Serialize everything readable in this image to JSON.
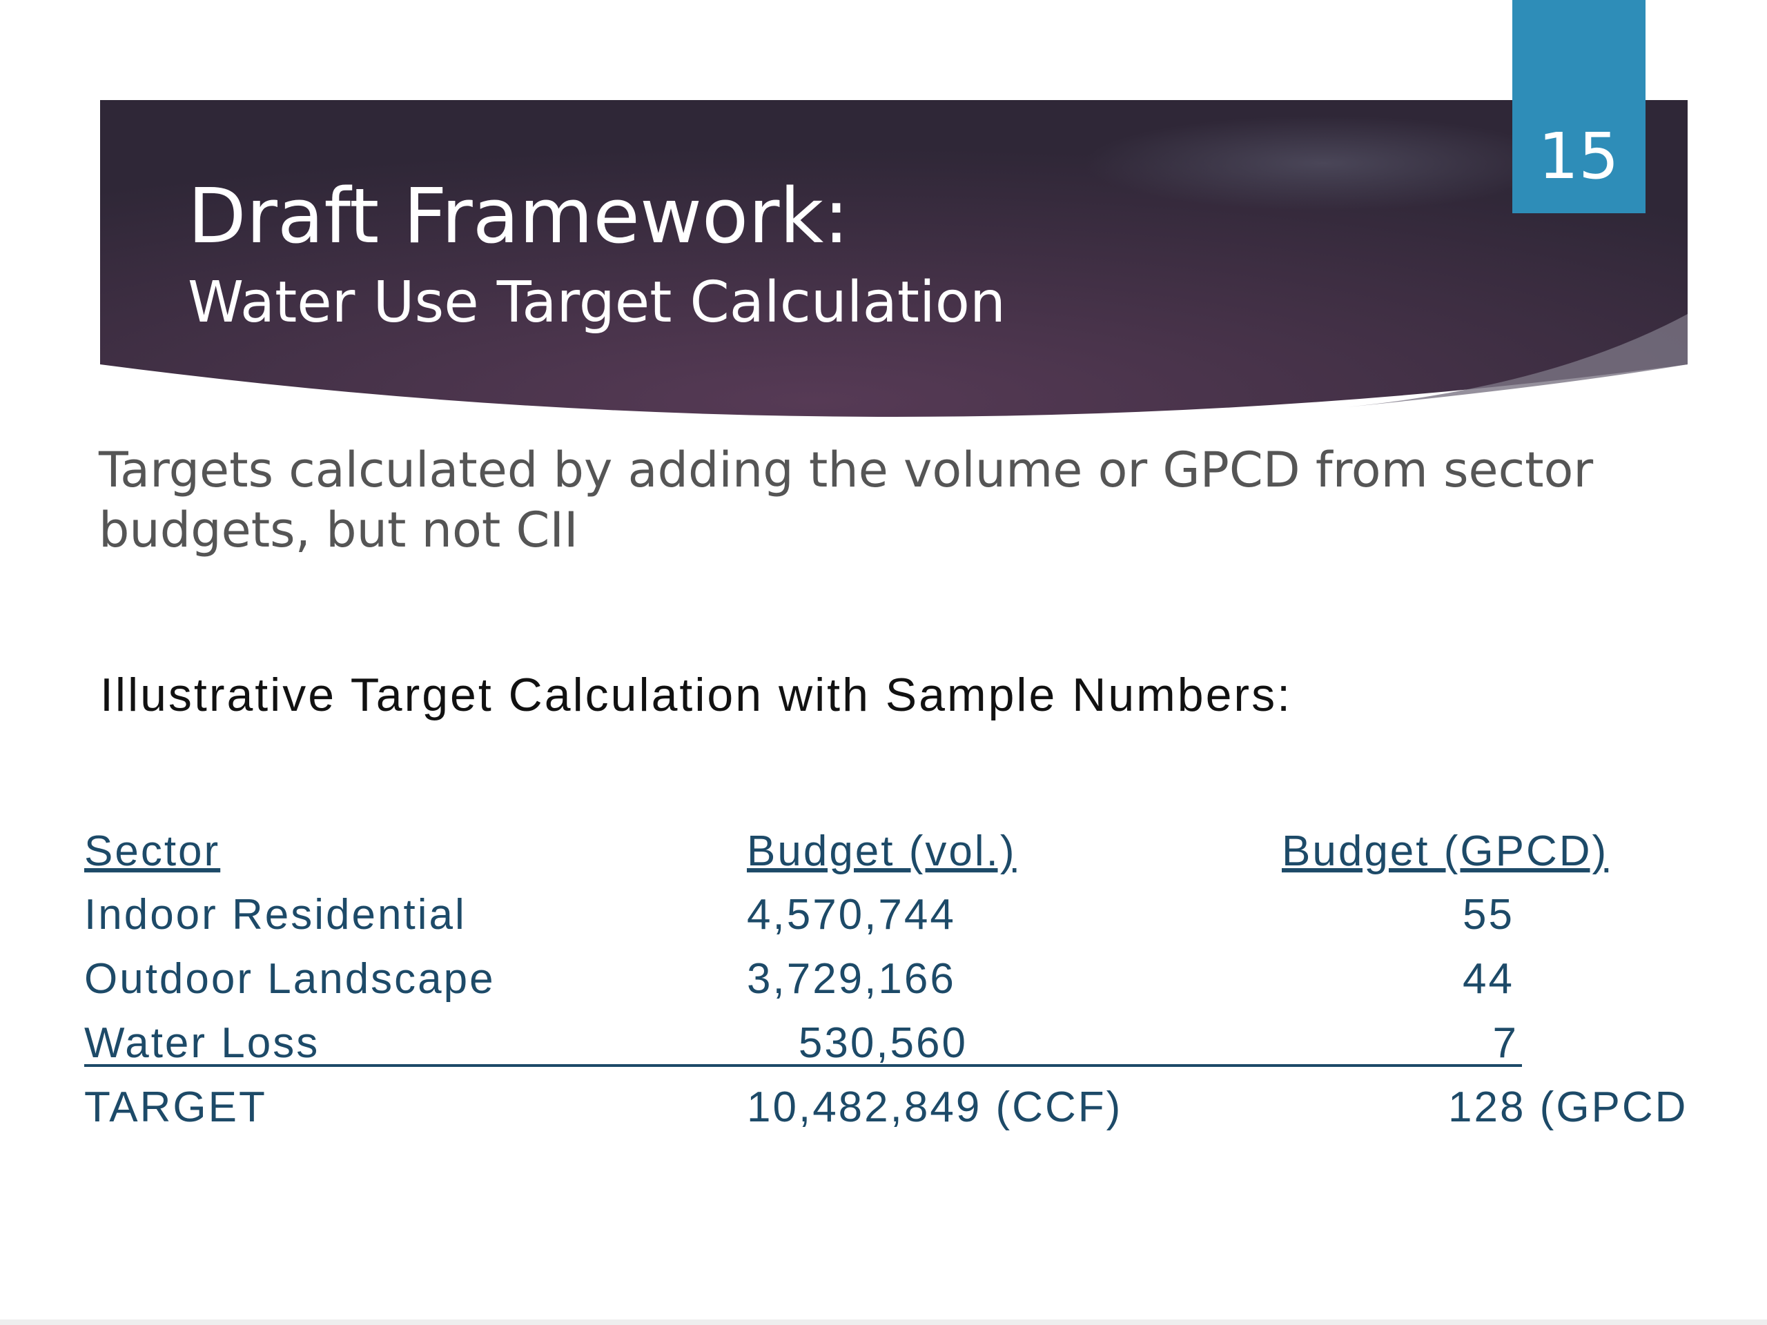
{
  "slide_number": "15",
  "title": "Draft Framework:",
  "subtitle": "Water Use Target Calculation",
  "body": [
    "Targets calculated by adding the volume or GPCD from sector",
    "budgets, but not CII"
  ],
  "table_heading": "Illustrative Target Calculation with Sample Numbers:",
  "table": {
    "headers": [
      "Sector",
      "Budget (vol.)",
      "Budget (GPCD)"
    ],
    "rows": [
      [
        "Indoor Residential",
        "4,570,744",
        "55"
      ],
      [
        "Outdoor Landscape",
        "3,729,166",
        "44"
      ],
      [
        "Water Loss",
        "530,560",
        "7"
      ],
      [
        "TARGET",
        "10,482,849 (CCF)",
        "128 (GPCD"
      ]
    ]
  }
}
